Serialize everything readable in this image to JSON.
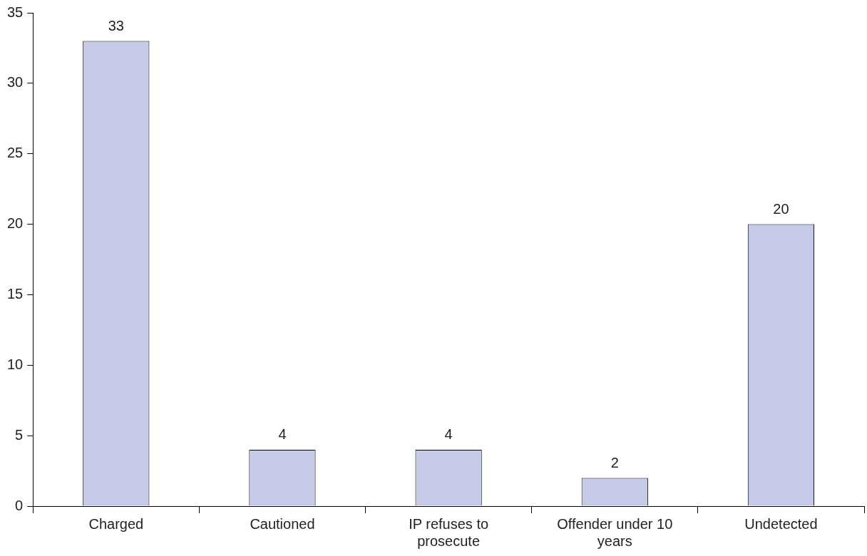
{
  "chart_data": {
    "type": "bar",
    "categories": [
      "Charged",
      "Cautioned",
      "IP refuses to prosecute",
      "Offender under 10 years",
      "Undetected"
    ],
    "values": [
      33,
      4,
      4,
      2,
      20
    ],
    "color": "#c5cae6",
    "ylim": [
      0,
      35
    ],
    "yticks": [
      0,
      5,
      10,
      15,
      20,
      25,
      30,
      35
    ],
    "grid": false,
    "legend": false,
    "data_labels": true
  }
}
